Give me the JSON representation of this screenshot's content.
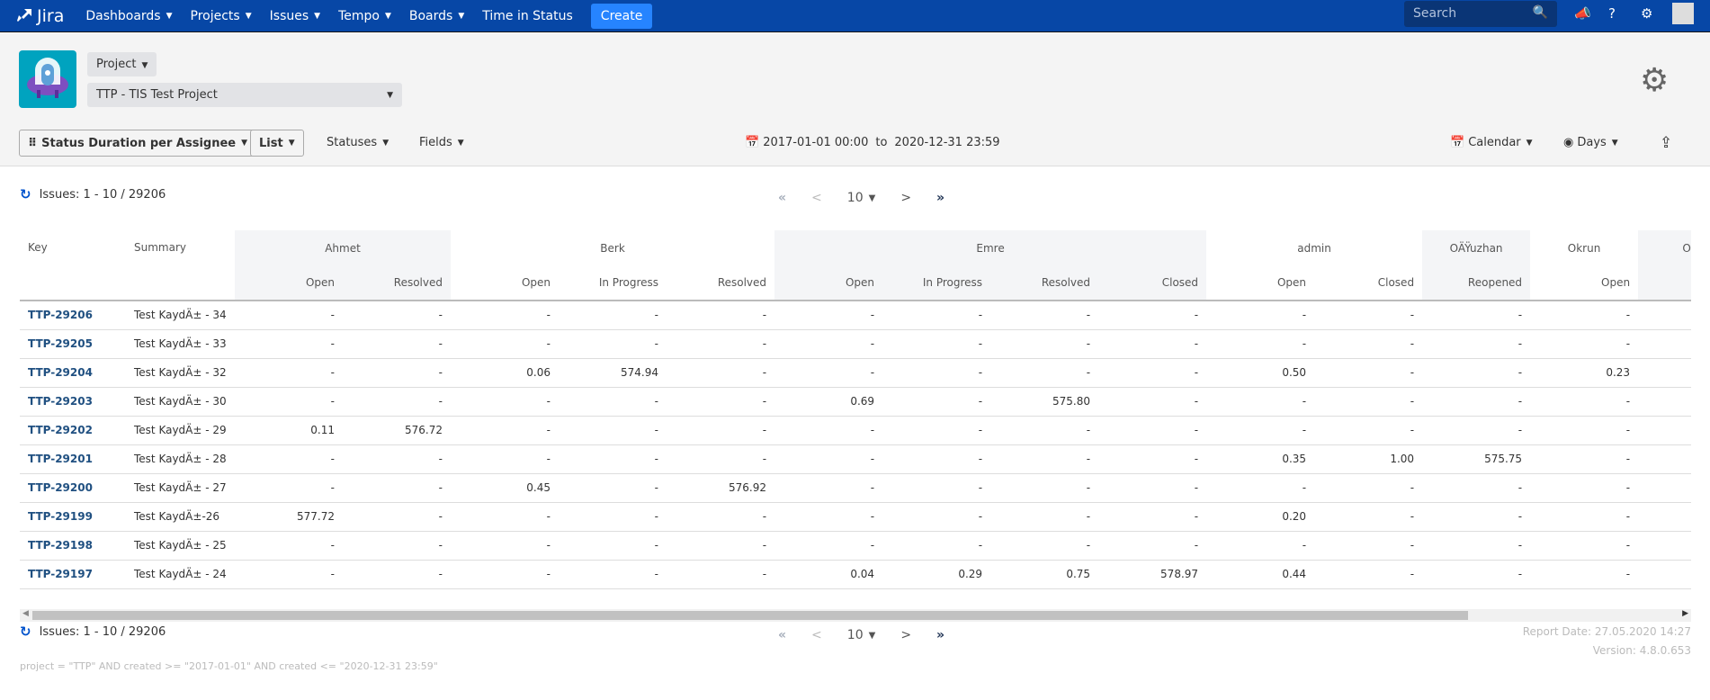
{
  "nav": {
    "brand": "Jira",
    "items": [
      "Dashboards",
      "Projects",
      "Issues",
      "Tempo",
      "Boards"
    ],
    "time_in_status": "Time in Status",
    "create": "Create",
    "search_placeholder": "Search"
  },
  "project": {
    "type_label": "Project",
    "selected": "TTP - TIS Test Project"
  },
  "toolbar": {
    "report": "Status Duration per Assignee",
    "view": "List",
    "statuses": "Statuses",
    "fields": "Fields",
    "date_from": "2017-01-01 00:00",
    "to": "to",
    "date_to": "2020-12-31 23:59",
    "calendar": "Calendar",
    "days": "Days"
  },
  "issues_count": "Issues: 1 - 10 / 29206",
  "pager": {
    "first": "«",
    "prev": "<",
    "page_size": "10",
    "next": ">",
    "last": "»"
  },
  "table": {
    "key_header": "Key",
    "summary_header": "Summary",
    "groups": [
      {
        "name": "Ahmet",
        "cols": [
          "Open",
          "Resolved"
        ]
      },
      {
        "name": "Berk",
        "cols": [
          "Open",
          "In Progress",
          "Resolved"
        ]
      },
      {
        "name": "Emre",
        "cols": [
          "Open",
          "In Progress",
          "Resolved",
          "Closed"
        ]
      },
      {
        "name": "admin",
        "cols": [
          "Open",
          "Closed"
        ]
      },
      {
        "name": "OÄŸuzhan",
        "cols": [
          "Reopened"
        ]
      },
      {
        "name": "Okrun",
        "cols": [
          "Open"
        ]
      },
      {
        "name": "Ork",
        "cols": [
          ""
        ]
      }
    ],
    "rows": [
      {
        "key": "TTP-29206",
        "summary": "Test KaydÄ± - 34",
        "values": [
          "-",
          "-",
          "-",
          "-",
          "-",
          "-",
          "-",
          "-",
          "-",
          "-",
          "-",
          "-",
          "-",
          ""
        ]
      },
      {
        "key": "TTP-29205",
        "summary": "Test KaydÄ± - 33",
        "values": [
          "-",
          "-",
          "-",
          "-",
          "-",
          "-",
          "-",
          "-",
          "-",
          "-",
          "-",
          "-",
          "-",
          ""
        ]
      },
      {
        "key": "TTP-29204",
        "summary": "Test KaydÄ± - 32",
        "values": [
          "-",
          "-",
          "0.06",
          "574.94",
          "-",
          "-",
          "-",
          "-",
          "-",
          "0.50",
          "-",
          "-",
          "0.23",
          ""
        ]
      },
      {
        "key": "TTP-29203",
        "summary": "Test KaydÄ± - 30",
        "values": [
          "-",
          "-",
          "-",
          "-",
          "-",
          "0.69",
          "-",
          "575.80",
          "-",
          "-",
          "-",
          "-",
          "-",
          ""
        ]
      },
      {
        "key": "TTP-29202",
        "summary": "Test KaydÄ± - 29",
        "values": [
          "0.11",
          "576.72",
          "-",
          "-",
          "-",
          "-",
          "-",
          "-",
          "-",
          "-",
          "-",
          "-",
          "-",
          ""
        ]
      },
      {
        "key": "TTP-29201",
        "summary": "Test KaydÄ± - 28",
        "values": [
          "-",
          "-",
          "-",
          "-",
          "-",
          "-",
          "-",
          "-",
          "-",
          "0.35",
          "1.00",
          "575.75",
          "-",
          ""
        ]
      },
      {
        "key": "TTP-29200",
        "summary": "Test KaydÄ± - 27",
        "values": [
          "-",
          "-",
          "0.45",
          "-",
          "576.92",
          "-",
          "-",
          "-",
          "-",
          "-",
          "-",
          "-",
          "-",
          ""
        ]
      },
      {
        "key": "TTP-29199",
        "summary": "Test KaydÄ±-26",
        "values": [
          "577.72",
          "-",
          "-",
          "-",
          "-",
          "-",
          "-",
          "-",
          "-",
          "0.20",
          "-",
          "-",
          "-",
          ""
        ]
      },
      {
        "key": "TTP-29198",
        "summary": "Test KaydÄ± - 25",
        "values": [
          "-",
          "-",
          "-",
          "-",
          "-",
          "-",
          "-",
          "-",
          "-",
          "-",
          "-",
          "-",
          "-",
          ""
        ]
      },
      {
        "key": "TTP-29197",
        "summary": "Test KaydÄ± - 24",
        "values": [
          "-",
          "-",
          "-",
          "-",
          "-",
          "0.04",
          "0.29",
          "0.75",
          "578.97",
          "0.44",
          "-",
          "-",
          "-",
          ""
        ]
      }
    ]
  },
  "footer": {
    "report_date": "Report Date: 27.05.2020 14:27",
    "version": "Version: 4.8.0.653",
    "jql": "project = \"TTP\" AND created >= \"2017-01-01\" AND created <= \"2020-12-31 23:59\""
  },
  "colors": {
    "nav": "#0747a6",
    "create": "#2684ff",
    "link": "#205081"
  }
}
